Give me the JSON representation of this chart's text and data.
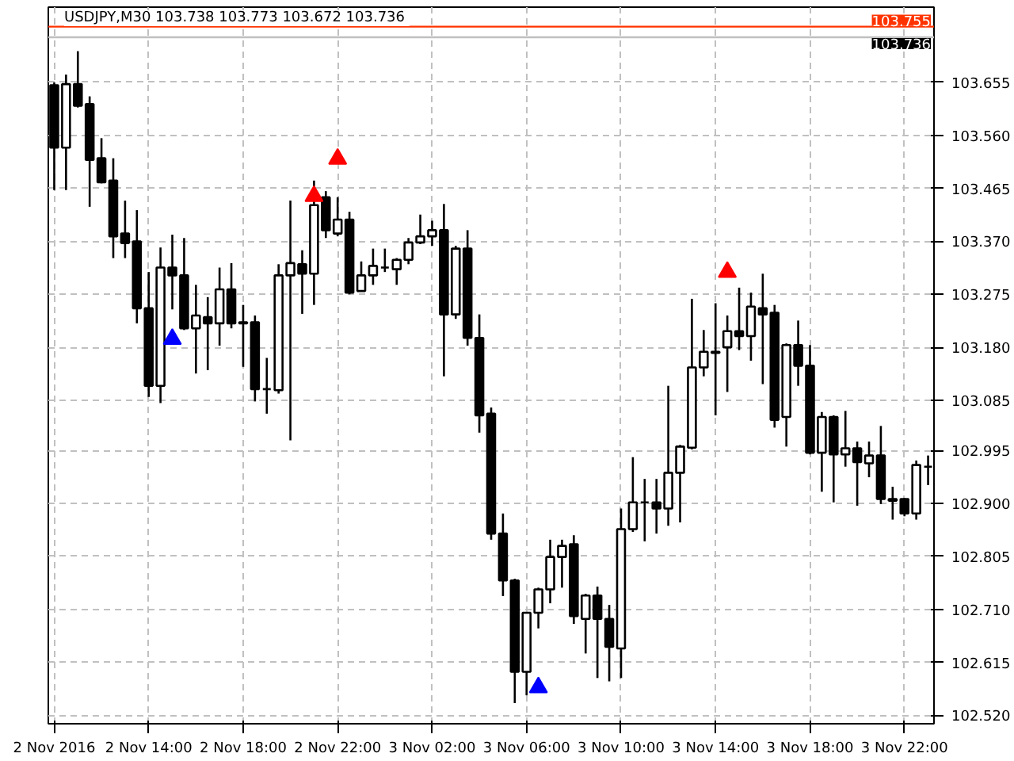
{
  "chart_data": {
    "type": "candlestick",
    "title": "USDJPY,M30  103.738 103.773 103.672 103.736",
    "x": [
      "2016-11-02T10:00",
      "2016-11-02T10:30",
      "2016-11-02T11:00",
      "2016-11-02T11:30",
      "2016-11-02T12:00",
      "2016-11-02T12:30",
      "2016-11-02T13:00",
      "2016-11-02T13:30",
      "2016-11-02T14:00",
      "2016-11-02T14:30",
      "2016-11-02T15:00",
      "2016-11-02T15:30",
      "2016-11-02T16:00",
      "2016-11-02T16:30",
      "2016-11-02T17:00",
      "2016-11-02T17:30",
      "2016-11-02T18:00",
      "2016-11-02T18:30",
      "2016-11-02T19:00",
      "2016-11-02T19:30",
      "2016-11-02T20:00",
      "2016-11-02T20:30",
      "2016-11-02T21:00",
      "2016-11-02T21:30",
      "2016-11-02T22:00",
      "2016-11-02T22:30",
      "2016-11-02T23:00",
      "2016-11-02T23:30",
      "2016-11-03T00:00",
      "2016-11-03T00:30",
      "2016-11-03T01:00",
      "2016-11-03T01:30",
      "2016-11-03T02:00",
      "2016-11-03T02:30",
      "2016-11-03T03:00",
      "2016-11-03T03:30",
      "2016-11-03T04:00",
      "2016-11-03T04:30",
      "2016-11-03T05:00",
      "2016-11-03T05:30",
      "2016-11-03T06:00",
      "2016-11-03T06:30",
      "2016-11-03T07:00",
      "2016-11-03T07:30",
      "2016-11-03T08:00",
      "2016-11-03T08:30",
      "2016-11-03T09:00",
      "2016-11-03T09:30",
      "2016-11-03T10:00",
      "2016-11-03T10:30",
      "2016-11-03T11:00",
      "2016-11-03T11:30",
      "2016-11-03T12:00",
      "2016-11-03T12:30",
      "2016-11-03T13:00",
      "2016-11-03T13:30",
      "2016-11-03T14:00",
      "2016-11-03T14:30",
      "2016-11-03T15:00",
      "2016-11-03T15:30",
      "2016-11-03T16:00",
      "2016-11-03T16:30",
      "2016-11-03T17:00",
      "2016-11-03T17:30",
      "2016-11-03T18:00",
      "2016-11-03T18:30",
      "2016-11-03T19:00",
      "2016-11-03T19:30",
      "2016-11-03T20:00",
      "2016-11-03T20:30",
      "2016-11-03T21:00",
      "2016-11-03T21:30",
      "2016-11-03T22:00",
      "2016-11-03T22:30",
      "2016-11-03T23:00"
    ],
    "ohlc": [
      [
        103.65,
        103.655,
        103.462,
        103.538
      ],
      [
        103.538,
        103.669,
        103.462,
        103.652
      ],
      [
        103.652,
        103.711,
        103.61,
        103.613
      ],
      [
        103.616,
        103.63,
        103.432,
        103.516
      ],
      [
        103.519,
        103.555,
        103.474,
        103.476
      ],
      [
        103.479,
        103.519,
        103.34,
        103.379
      ],
      [
        103.384,
        103.443,
        103.34,
        103.367
      ],
      [
        103.37,
        103.426,
        103.223,
        103.25
      ],
      [
        103.25,
        103.315,
        103.091,
        103.111
      ],
      [
        103.111,
        103.359,
        103.08,
        103.323
      ],
      [
        103.323,
        103.382,
        103.248,
        103.309
      ],
      [
        103.309,
        103.376,
        103.211,
        103.214
      ],
      [
        103.214,
        103.292,
        103.133,
        103.237
      ],
      [
        103.234,
        103.27,
        103.139,
        103.223
      ],
      [
        103.223,
        103.323,
        103.183,
        103.284
      ],
      [
        103.284,
        103.331,
        103.214,
        103.223
      ],
      [
        103.225,
        103.256,
        103.145,
        103.223
      ],
      [
        103.225,
        103.237,
        103.083,
        103.105
      ],
      [
        103.105,
        103.161,
        103.061,
        103.105
      ],
      [
        103.103,
        103.329,
        103.097,
        103.309
      ],
      [
        103.309,
        103.443,
        103.013,
        103.331
      ],
      [
        103.329,
        103.354,
        103.24,
        103.312
      ],
      [
        103.312,
        103.479,
        103.256,
        103.435
      ],
      [
        103.449,
        103.46,
        103.376,
        103.39
      ],
      [
        103.384,
        103.449,
        103.379,
        103.409
      ],
      [
        103.409,
        103.423,
        103.275,
        103.278
      ],
      [
        103.281,
        103.334,
        103.281,
        103.309
      ],
      [
        103.309,
        103.357,
        103.292,
        103.326
      ],
      [
        103.323,
        103.357,
        103.315,
        103.323
      ],
      [
        103.32,
        103.34,
        103.292,
        103.337
      ],
      [
        103.337,
        103.376,
        103.329,
        103.368
      ],
      [
        103.368,
        103.418,
        103.365,
        103.379
      ],
      [
        103.379,
        103.407,
        103.362,
        103.39
      ],
      [
        103.39,
        103.437,
        103.128,
        103.239
      ],
      [
        103.239,
        103.362,
        103.231,
        103.357
      ],
      [
        103.357,
        103.39,
        103.183,
        103.197
      ],
      [
        103.197,
        103.239,
        103.027,
        103.058
      ],
      [
        103.061,
        103.072,
        102.835,
        102.846
      ],
      [
        102.846,
        102.882,
        102.734,
        102.762
      ],
      [
        102.762,
        102.765,
        102.542,
        102.598
      ],
      [
        102.598,
        102.704,
        102.556,
        102.704
      ],
      [
        102.704,
        102.749,
        102.676,
        102.746
      ],
      [
        102.746,
        102.835,
        102.721,
        102.804
      ],
      [
        102.804,
        102.835,
        102.749,
        102.824
      ],
      [
        102.827,
        102.843,
        102.684,
        102.698
      ],
      [
        102.693,
        102.738,
        102.631,
        102.735
      ],
      [
        102.735,
        102.751,
        102.587,
        102.693
      ],
      [
        102.693,
        102.718,
        102.581,
        102.643
      ],
      [
        102.64,
        102.891,
        102.587,
        102.854
      ],
      [
        102.854,
        102.983,
        102.849,
        102.902
      ],
      [
        102.902,
        102.944,
        102.832,
        102.902
      ],
      [
        102.902,
        102.944,
        102.846,
        102.891
      ],
      [
        102.891,
        103.111,
        102.86,
        102.955
      ],
      [
        102.955,
        103.005,
        102.866,
        103.002
      ],
      [
        103.0,
        103.267,
        102.997,
        103.144
      ],
      [
        103.144,
        103.211,
        103.128,
        103.172
      ],
      [
        103.172,
        103.259,
        103.058,
        103.17
      ],
      [
        103.18,
        103.237,
        103.1,
        103.209
      ],
      [
        103.209,
        103.287,
        103.175,
        103.2
      ],
      [
        103.2,
        103.278,
        103.156,
        103.253
      ],
      [
        103.25,
        103.312,
        103.114,
        103.239
      ],
      [
        103.242,
        103.256,
        103.036,
        103.05
      ],
      [
        103.055,
        103.187,
        103.002,
        103.184
      ],
      [
        103.184,
        103.228,
        103.111,
        103.147
      ],
      [
        103.147,
        103.184,
        102.988,
        102.991
      ],
      [
        102.991,
        103.064,
        102.921,
        103.055
      ],
      [
        103.055,
        103.058,
        102.902,
        102.988
      ],
      [
        102.988,
        103.066,
        102.966,
        102.999
      ],
      [
        102.999,
        103.011,
        102.896,
        102.974
      ],
      [
        102.972,
        103.011,
        102.947,
        102.986
      ],
      [
        102.986,
        103.039,
        102.899,
        102.908
      ],
      [
        102.908,
        102.93,
        102.871,
        102.905
      ],
      [
        102.908,
        102.91,
        102.877,
        102.882
      ],
      [
        102.882,
        102.977,
        102.871,
        102.969
      ],
      [
        102.966,
        102.986,
        102.933,
        102.966
      ]
    ],
    "color": "#000000",
    "series": [
      {
        "type": "scatter",
        "marker": "triangle",
        "color": "#ff0000",
        "x": [
          "2016-11-02T21:00",
          "2016-11-02T22:00",
          "2016-11-03T14:30"
        ],
        "values": [
          103.451,
          103.518,
          103.315
        ]
      },
      {
        "type": "scatter",
        "marker": "triangle",
        "color": "#0000ff",
        "x": [
          "2016-11-02T15:00",
          "2016-11-03T06:30"
        ],
        "values": [
          103.195,
          102.57
        ]
      }
    ],
    "xlim": [
      "2016-11-02T09:45",
      "2016-11-03T23:15"
    ],
    "xticks": [
      {
        "value": "2016-11-02T10:00",
        "label": "2 Nov 2016"
      },
      {
        "value": "2016-11-02T14:00",
        "label": "2 Nov 14:00"
      },
      {
        "value": "2016-11-02T18:00",
        "label": "2 Nov 18:00"
      },
      {
        "value": "2016-11-02T22:00",
        "label": "2 Nov 22:00"
      },
      {
        "value": "2016-11-03T02:00",
        "label": "3 Nov 02:00"
      },
      {
        "value": "2016-11-03T06:00",
        "label": "3 Nov 06:00"
      },
      {
        "value": "2016-11-03T10:00",
        "label": "3 Nov 10:00"
      },
      {
        "value": "2016-11-03T14:00",
        "label": "3 Nov 14:00"
      },
      {
        "value": "2016-11-03T18:00",
        "label": "3 Nov 18:00"
      },
      {
        "value": "2016-11-03T22:00",
        "label": "3 Nov 22:00"
      }
    ],
    "ylim": [
      102.505,
      103.79
    ],
    "yticks": [
      {
        "value": 102.52,
        "label": "102.520"
      },
      {
        "value": 102.615,
        "label": "102.615"
      },
      {
        "value": 102.71,
        "label": "102.710"
      },
      {
        "value": 102.805,
        "label": "102.805"
      },
      {
        "value": 102.9,
        "label": "102.900"
      },
      {
        "value": 102.995,
        "label": "102.995"
      },
      {
        "value": 103.085,
        "label": "103.085"
      },
      {
        "value": 103.18,
        "label": "103.180"
      },
      {
        "value": 103.275,
        "label": "103.275"
      },
      {
        "value": 103.37,
        "label": "103.370"
      },
      {
        "value": 103.465,
        "label": "103.465"
      },
      {
        "value": 103.56,
        "label": "103.560"
      },
      {
        "value": 103.655,
        "label": "103.655"
      }
    ],
    "ref_lines": [
      {
        "axis": "y",
        "value": 103.755,
        "label": "103.755",
        "color": "#ff3300"
      },
      {
        "axis": "y",
        "value": 103.736,
        "label": "103.736",
        "color": "#c0c0c0"
      }
    ],
    "grid": true
  }
}
